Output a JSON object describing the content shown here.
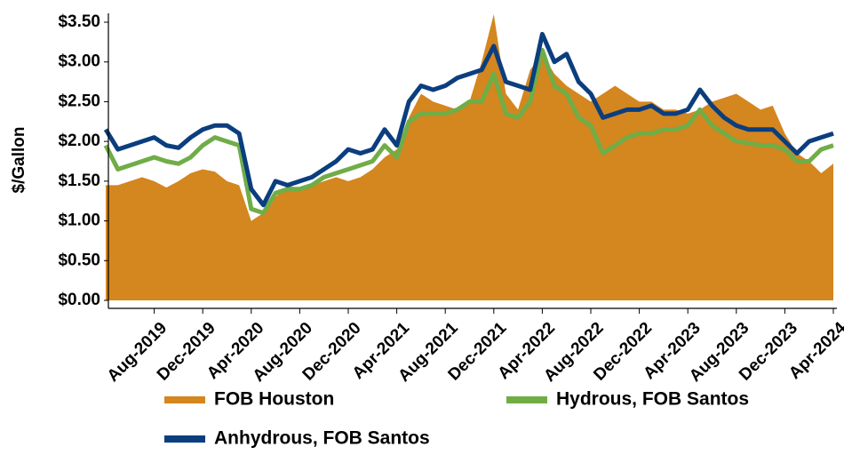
{
  "chart_data": {
    "type": "line",
    "y_label": "$/Gallon",
    "x": [
      "2019-04",
      "2019-05",
      "2019-06",
      "2019-07",
      "2019-08",
      "2019-09",
      "2019-10",
      "2019-11",
      "2019-12",
      "2020-01",
      "2020-02",
      "2020-03",
      "2020-04",
      "2020-05",
      "2020-06",
      "2020-07",
      "2020-08",
      "2020-09",
      "2020-10",
      "2020-11",
      "2020-12",
      "2021-01",
      "2021-02",
      "2021-03",
      "2021-04",
      "2021-05",
      "2021-06",
      "2021-07",
      "2021-08",
      "2021-09",
      "2021-10",
      "2021-11",
      "2021-12",
      "2022-01",
      "2022-02",
      "2022-03",
      "2022-04",
      "2022-05",
      "2022-06",
      "2022-07",
      "2022-08",
      "2022-09",
      "2022-10",
      "2022-11",
      "2022-12",
      "2023-01",
      "2023-02",
      "2023-03",
      "2023-04",
      "2023-05",
      "2023-06",
      "2023-07",
      "2023-08",
      "2023-09",
      "2023-10",
      "2023-11",
      "2023-12",
      "2024-01",
      "2024-02",
      "2024-03",
      "2024-04"
    ],
    "series": [
      {
        "name": "FOB Houston",
        "type": "area",
        "color": "#d4861f",
        "values": [
          1.45,
          1.45,
          1.5,
          1.55,
          1.5,
          1.42,
          1.5,
          1.6,
          1.65,
          1.62,
          1.5,
          1.45,
          1.0,
          1.1,
          1.3,
          1.45,
          1.4,
          1.45,
          1.5,
          1.55,
          1.5,
          1.55,
          1.65,
          1.8,
          1.9,
          2.3,
          2.6,
          2.5,
          2.45,
          2.4,
          2.5,
          3.0,
          3.6,
          2.6,
          2.4,
          2.9,
          3.1,
          2.85,
          2.7,
          2.6,
          2.5,
          2.6,
          2.7,
          2.6,
          2.5,
          2.5,
          2.4,
          2.4,
          2.35,
          2.4,
          2.5,
          2.55,
          2.6,
          2.5,
          2.4,
          2.45,
          2.1,
          1.85,
          1.75,
          1.6,
          1.72
        ]
      },
      {
        "name": "Hydrous, FOB Santos",
        "type": "line",
        "color": "#70ad47",
        "values": [
          1.95,
          1.65,
          1.7,
          1.75,
          1.8,
          1.75,
          1.72,
          1.8,
          1.95,
          2.05,
          2.0,
          1.95,
          1.15,
          1.1,
          1.35,
          1.4,
          1.4,
          1.45,
          1.55,
          1.6,
          1.65,
          1.7,
          1.75,
          1.95,
          1.8,
          2.25,
          2.35,
          2.35,
          2.35,
          2.4,
          2.5,
          2.5,
          2.85,
          2.35,
          2.3,
          2.5,
          3.15,
          2.7,
          2.6,
          2.3,
          2.2,
          1.85,
          1.95,
          2.05,
          2.1,
          2.1,
          2.15,
          2.15,
          2.2,
          2.4,
          2.2,
          2.1,
          2.0,
          1.98,
          1.95,
          1.95,
          1.9,
          1.75,
          1.75,
          1.9,
          1.95
        ]
      },
      {
        "name": "Anhydrous, FOB Santos",
        "type": "line",
        "color": "#0b3e7e",
        "values": [
          2.15,
          1.9,
          1.95,
          2.0,
          2.05,
          1.95,
          1.92,
          2.05,
          2.15,
          2.2,
          2.2,
          2.1,
          1.4,
          1.2,
          1.5,
          1.45,
          1.5,
          1.55,
          1.65,
          1.75,
          1.9,
          1.85,
          1.9,
          2.15,
          1.95,
          2.5,
          2.7,
          2.65,
          2.7,
          2.8,
          2.85,
          2.9,
          3.2,
          2.75,
          2.7,
          2.65,
          3.35,
          3.0,
          3.1,
          2.75,
          2.6,
          2.3,
          2.35,
          2.4,
          2.4,
          2.45,
          2.35,
          2.35,
          2.4,
          2.65,
          2.45,
          2.3,
          2.2,
          2.15,
          2.15,
          2.15,
          2.0,
          1.85,
          2.0,
          2.05,
          2.1
        ]
      }
    ],
    "xlim": [
      "2019-04",
      "2024-04"
    ],
    "xticks": [
      {
        "value": "2019-08",
        "label": "Aug-2019"
      },
      {
        "value": "2019-12",
        "label": "Dec-2019"
      },
      {
        "value": "2020-04",
        "label": "Apr-2020"
      },
      {
        "value": "2020-08",
        "label": "Aug-2020"
      },
      {
        "value": "2020-12",
        "label": "Dec-2020"
      },
      {
        "value": "2021-04",
        "label": "Apr-2021"
      },
      {
        "value": "2021-08",
        "label": "Aug-2021"
      },
      {
        "value": "2021-12",
        "label": "Dec-2021"
      },
      {
        "value": "2022-04",
        "label": "Apr-2022"
      },
      {
        "value": "2022-08",
        "label": "Aug-2022"
      },
      {
        "value": "2022-12",
        "label": "Dec-2022"
      },
      {
        "value": "2023-04",
        "label": "Apr-2023"
      },
      {
        "value": "2023-08",
        "label": "Aug-2023"
      },
      {
        "value": "2023-12",
        "label": "Dec-2023"
      },
      {
        "value": "2024-04",
        "label": "Apr-2024"
      }
    ],
    "ylim": [
      0,
      3.5
    ],
    "yticks": [
      {
        "value": 0,
        "label": "$0.00"
      },
      {
        "value": 0.5,
        "label": "$0.50"
      },
      {
        "value": 1,
        "label": "$1.00"
      },
      {
        "value": 1.5,
        "label": "$1.50"
      },
      {
        "value": 2,
        "label": "$2.00"
      },
      {
        "value": 2.5,
        "label": "$2.50"
      },
      {
        "value": 3,
        "label": "$3.00"
      },
      {
        "value": 3.5,
        "label": "$3.50"
      }
    ],
    "grid": false
  }
}
